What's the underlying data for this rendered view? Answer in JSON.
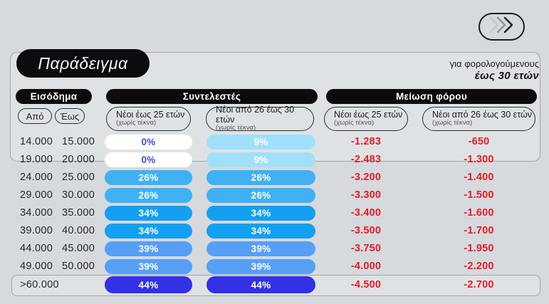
{
  "page": {
    "background": "#d6d9dd"
  },
  "nav": {
    "button_icon": "triple-chevron-right-icon"
  },
  "header": {
    "title": "Παράδειγμα",
    "audience_line1": "για φορολογούμενους",
    "audience_line2": "έως 30 ετών"
  },
  "table": {
    "group_income": "Εισόδημα",
    "group_rates": "Συντελεστές",
    "group_reduction": "Μείωση φόρου",
    "from_label": "Από",
    "to_label": "Έως",
    "subheads": [
      {
        "title": "Νέοι έως 25 ετών",
        "note": "(χωρίς τέκνα)"
      },
      {
        "title": "Νέοι από 26 έως 30 ετών",
        "note": "(χωρίς τέκνα)"
      },
      {
        "title": "Νέοι έως 25 ετών",
        "note": "(χωρίς τέκνα)"
      },
      {
        "title": "Νέοι από 26 έως 30 ετών",
        "note": "(χωρίς τέκνα)"
      }
    ],
    "palette": {
      "white": {
        "bg": "#ffffff",
        "fg": "#3a50c8"
      },
      "cyan": {
        "bg": "#a0e0fa",
        "fg": "#ffffff"
      },
      "sky": {
        "bg": "#3fb1f3",
        "fg": "#ffffff"
      },
      "azure": {
        "bg": "#13a0f0",
        "fg": "#ffffff"
      },
      "cornflower": {
        "bg": "#579ff4",
        "fg": "#ffffff"
      },
      "indigo": {
        "bg": "#3430e4",
        "fg": "#ffffff"
      }
    },
    "rows": [
      {
        "from": "14.000",
        "to": "15.000",
        "rate25": "0%",
        "rate30": "9%",
        "c25": "white",
        "c30": "cyan",
        "red25": "-1.283",
        "red30": "-650"
      },
      {
        "from": "19.000",
        "to": "20.000",
        "rate25": "0%",
        "rate30": "9%",
        "c25": "white",
        "c30": "cyan",
        "red25": "-2.483",
        "red30": "-1.300"
      },
      {
        "from": "24.000",
        "to": "25.000",
        "rate25": "26%",
        "rate30": "26%",
        "c25": "sky",
        "c30": "sky",
        "red25": "-3.200",
        "red30": "-1.400"
      },
      {
        "from": "29.000",
        "to": "30.000",
        "rate25": "26%",
        "rate30": "26%",
        "c25": "sky",
        "c30": "sky",
        "red25": "-3.300",
        "red30": "-1.500"
      },
      {
        "from": "34.000",
        "to": "35.000",
        "rate25": "34%",
        "rate30": "34%",
        "c25": "azure",
        "c30": "azure",
        "red25": "-3.400",
        "red30": "-1.600"
      },
      {
        "from": "39.000",
        "to": "40.000",
        "rate25": "34%",
        "rate30": "34%",
        "c25": "azure",
        "c30": "azure",
        "red25": "-3.500",
        "red30": "-1.700"
      },
      {
        "from": "44.000",
        "to": "45.000",
        "rate25": "39%",
        "rate30": "39%",
        "c25": "cornflower",
        "c30": "cornflower",
        "red25": "-3.750",
        "red30": "-1.950"
      },
      {
        "from": "49.000",
        "to": "50.000",
        "rate25": "39%",
        "rate30": "39%",
        "c25": "cornflower",
        "c30": "cornflower",
        "red25": "-4.000",
        "red30": "-2.200"
      },
      {
        "from": ">60.000",
        "to": "",
        "rate25": "44%",
        "rate30": "44%",
        "c25": "indigo",
        "c30": "indigo",
        "red25": "-4.500",
        "red30": "-2.700"
      }
    ]
  },
  "chart_data": {
    "type": "table",
    "title": "Παράδειγμα",
    "subtitle": "για φορολογούμενους έως 30 ετών",
    "column_groups": [
      "Εισόδημα",
      "Συντελεστές",
      "Μείωση φόρου"
    ],
    "columns": [
      "Από",
      "Έως",
      "Συντελεστές — Νέοι έως 25 ετών (χωρίς τέκνα)",
      "Συντελεστές — Νέοι από 26 έως 30 ετών (χωρίς τέκνα)",
      "Μείωση φόρου — Νέοι έως 25 ετών (χωρίς τέκνα)",
      "Μείωση φόρου — Νέοι από 26 έως 30 ετών (χωρίς τέκνα)"
    ],
    "rows": [
      [
        "14.000",
        "15.000",
        "0%",
        "9%",
        "-1.283",
        "-650"
      ],
      [
        "19.000",
        "20.000",
        "0%",
        "9%",
        "-2.483",
        "-1.300"
      ],
      [
        "24.000",
        "25.000",
        "26%",
        "26%",
        "-3.200",
        "-1.400"
      ],
      [
        "29.000",
        "30.000",
        "26%",
        "26%",
        "-3.300",
        "-1.500"
      ],
      [
        "34.000",
        "35.000",
        "34%",
        "34%",
        "-3.400",
        "-1.600"
      ],
      [
        "39.000",
        "40.000",
        "34%",
        "34%",
        "-3.500",
        "-1.700"
      ],
      [
        "44.000",
        "45.000",
        "39%",
        "39%",
        "-3.750",
        "-1.950"
      ],
      [
        "49.000",
        "50.000",
        "39%",
        "39%",
        "-4.000",
        "-2.200"
      ],
      [
        ">60.000",
        "",
        "44%",
        "44%",
        "-4.500",
        "-2.700"
      ]
    ]
  }
}
